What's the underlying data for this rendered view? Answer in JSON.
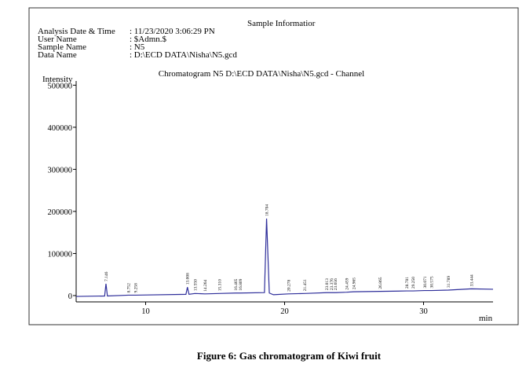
{
  "header": {
    "title": "Sample Informatior",
    "fields": [
      {
        "label": "Analysis Date & Time",
        "value": ": 11/23/2020 3:06:29 PN"
      },
      {
        "label": "User Name",
        "value": ": $Admn.$"
      },
      {
        "label": "Sample Name",
        "value": ": N5"
      },
      {
        "label": "Data Name",
        "value": ": D:\\ECD DATA\\Nisha\\N5.gcd"
      }
    ]
  },
  "chart_data": {
    "type": "line",
    "title": "Chromatogram N5 D:\\ECD DATA\\Nisha\\N5.gcd - Channel",
    "y_label": "Intensity",
    "x_label": "min",
    "x": [
      5,
      7.05,
      7.146,
      7.25,
      8.752,
      9.258,
      12.9,
      13.008,
      13.12,
      13.55,
      14.264,
      15.31,
      16.465,
      16.809,
      18.55,
      18.704,
      18.9,
      19.2,
      20.278,
      21.451,
      23.013,
      23.376,
      23.656,
      24.459,
      24.965,
      26.865,
      28.781,
      29.25,
      30.071,
      30.575,
      31.789,
      33.444,
      35
    ],
    "values": [
      -2000,
      -1000,
      28000,
      -1000,
      1000,
      1000,
      3000,
      20000,
      3000,
      5000,
      4000,
      5000,
      6000,
      6000,
      7000,
      183000,
      6000,
      2000,
      4000,
      5000,
      7000,
      7000,
      7000,
      8000,
      9000,
      10000,
      11000,
      11000,
      12000,
      12000,
      13000,
      16000,
      15000
    ],
    "x_labels": [
      null,
      null,
      "7.146",
      null,
      "8.752",
      "9.258",
      null,
      "13.008",
      null,
      "13.550",
      "14.264",
      "15.310",
      "16.465",
      "16.809",
      null,
      "18.704",
      null,
      null,
      "20.278",
      "21.451",
      "23.013",
      "23.376",
      "23.656",
      "24.459",
      "24.965",
      "26.865",
      "28.781",
      "29.250",
      "30.071",
      "30.575",
      "31.789",
      "33.444",
      null
    ],
    "color": "#2e2e9a",
    "xlim": [
      5,
      35
    ],
    "xticks": [
      10,
      20,
      30
    ],
    "ylim": [
      -15000,
      510000
    ],
    "yticks": [
      0,
      100000,
      200000,
      300000,
      400000,
      500000
    ]
  },
  "caption": "Figure 6: Gas chromatogram of Kiwi fruit"
}
